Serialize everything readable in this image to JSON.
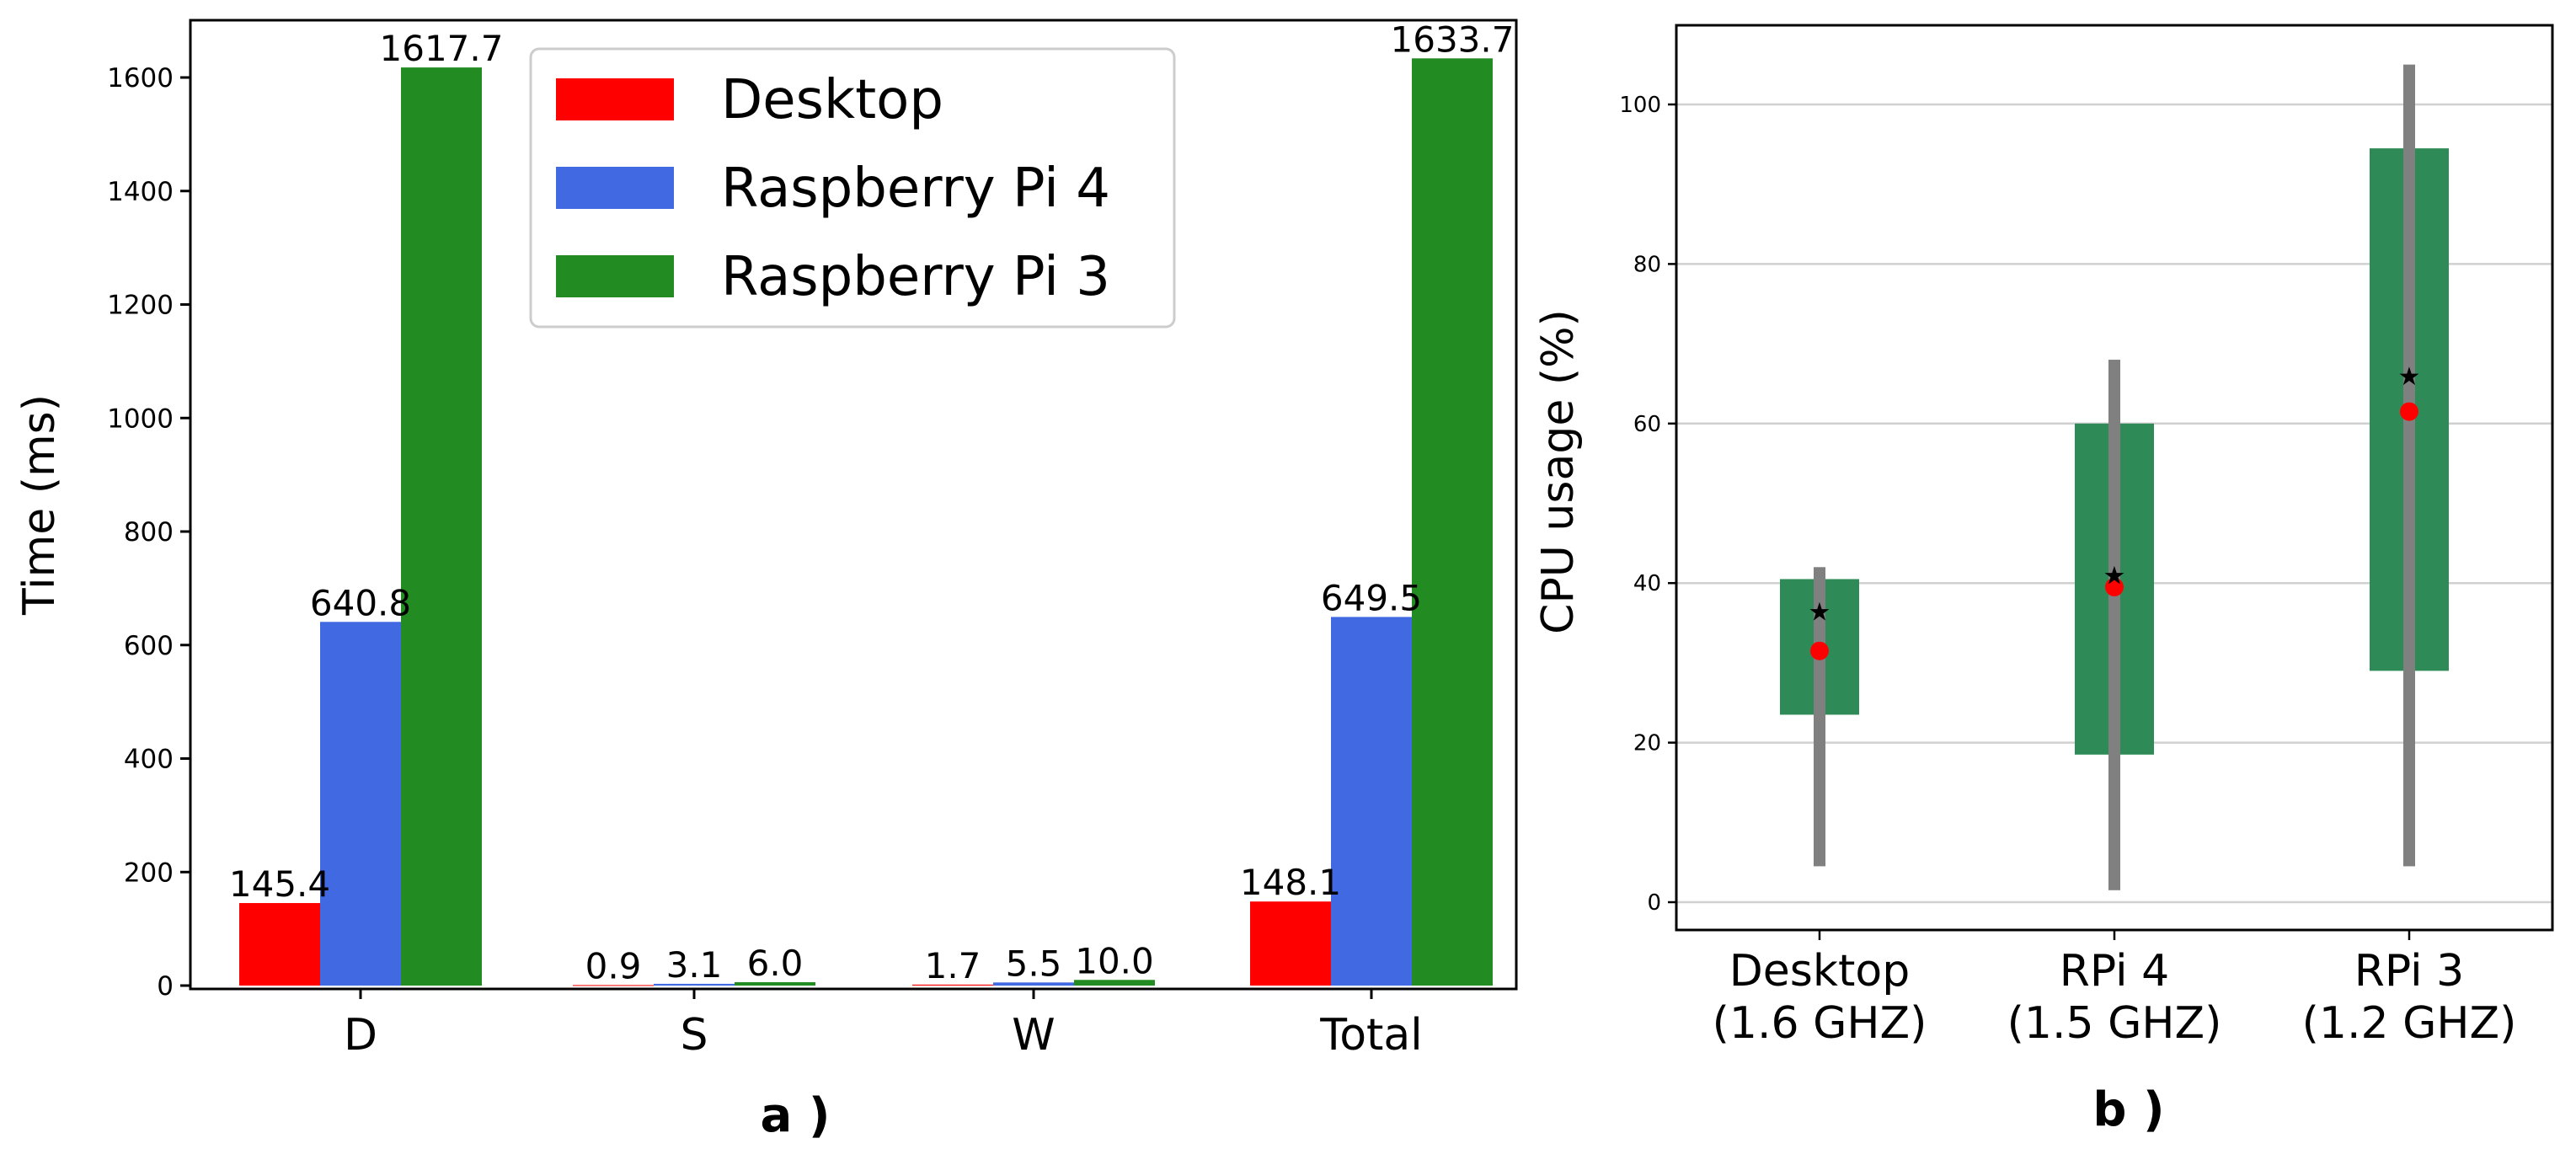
{
  "chart_data": [
    {
      "type": "bar",
      "panel_label": "a )",
      "ylabel": "Time (ms)",
      "xlabel": "",
      "ylim": [
        0,
        1620
      ],
      "yticks": [
        0,
        200,
        400,
        600,
        800,
        1000,
        1200,
        1400,
        1600
      ],
      "categories": [
        "D",
        "S",
        "W",
        "Total"
      ],
      "legend_position": "top-center",
      "grid": false,
      "series": [
        {
          "name": "Desktop",
          "color": "#ff0000",
          "values": [
            145.4,
            0.9,
            1.7,
            148.1
          ],
          "labels": [
            "145.4",
            "0.9",
            "1.7",
            "148.1"
          ]
        },
        {
          "name": "Raspberry Pi 4",
          "color": "#4169e1",
          "values": [
            640.8,
            3.1,
            5.5,
            649.5
          ],
          "labels": [
            "640.8",
            "3.1",
            "5.5",
            "649.5"
          ]
        },
        {
          "name": "Raspberry Pi 3",
          "color": "#228b22",
          "values": [
            1617.7,
            6.0,
            10.0,
            1633.7
          ],
          "labels": [
            "1617.7",
            "6.0",
            "10.0",
            "1633.7"
          ]
        }
      ]
    },
    {
      "type": "box",
      "panel_label": "b )",
      "ylabel": "CPU usage (%)",
      "xlabel": "",
      "ylim": [
        -4,
        110
      ],
      "yticks": [
        0,
        20,
        40,
        60,
        80,
        100
      ],
      "grid": "horizontal",
      "categories": [
        {
          "line1": "Desktop",
          "line2": "(1.6 GHZ)"
        },
        {
          "line1": "RPi 4",
          "line2": "(1.5 GHZ)"
        },
        {
          "line1": "RPi 3",
          "line2": "(1.2 GHZ)"
        }
      ],
      "box_color": "#2e8b57",
      "whisker_color": "#808080",
      "mean_marker_color": "#000000",
      "median_marker_color": "#ff0000",
      "boxes": [
        {
          "min": 4.5,
          "q1": 23.5,
          "q3": 40.5,
          "max": 42,
          "mean": 36.5,
          "median": 31.5
        },
        {
          "min": 1.5,
          "q1": 18.5,
          "q3": 60,
          "max": 68,
          "mean": 41,
          "median": 39.5
        },
        {
          "min": 4.5,
          "q1": 29,
          "q3": 94.5,
          "max": 105,
          "mean": 66,
          "median": 61.5
        }
      ]
    }
  ]
}
